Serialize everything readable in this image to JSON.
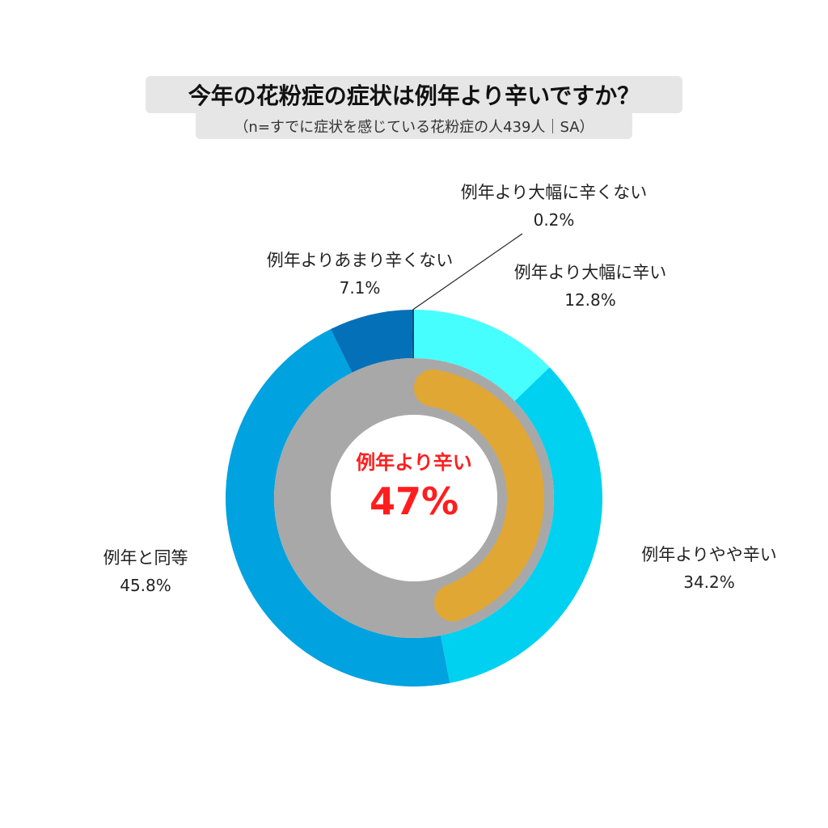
{
  "title": "今年の花粉症の症状は例年より辛いですか？",
  "subtitle": "（n=すでに症状を感じている花粉症の人439人｜SA）",
  "colors": {
    "inner_base": "#a8a8a8",
    "inner_highlight": "#e0a735",
    "center_text": "#ff1e1e"
  },
  "center": {
    "label": "例年より辛い",
    "value": "47%"
  },
  "chart_data": {
    "type": "pie",
    "style": "donut",
    "series": [
      {
        "slices": [
          {
            "label": "例年より大幅に辛い",
            "value": 12.8,
            "value_label": "12.8%",
            "color": "#47feff"
          },
          {
            "label": "例年よりやや辛い",
            "value": 34.2,
            "value_label": "34.2%",
            "color": "#00d1f0"
          },
          {
            "label": "例年と同等",
            "value": 45.8,
            "value_label": "45.8%",
            "color": "#00a2df"
          },
          {
            "label": "例年よりあまり辛くない",
            "value": 7.1,
            "value_label": "7.1%",
            "color": "#0370b8"
          },
          {
            "label": "例年より大幅に辛くない",
            "value": 0.2,
            "value_label": "0.2%",
            "color": "#0b4f8c"
          }
        ]
      },
      {
        "name": "例年より辛い",
        "value": 47
      }
    ]
  }
}
